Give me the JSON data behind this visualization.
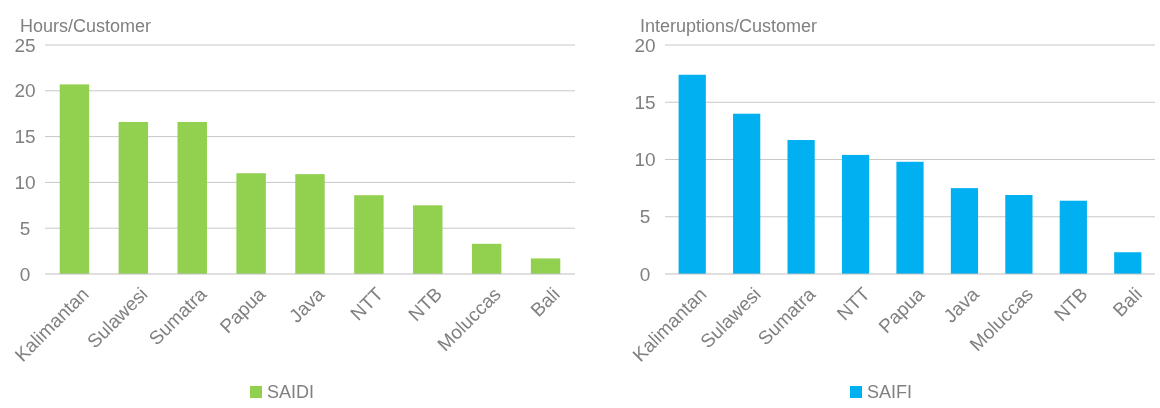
{
  "chart_data": [
    {
      "type": "bar",
      "ylabel": "Hours/Customer",
      "categories": [
        "Kalimantan",
        "Sulawesi",
        "Sumatra",
        "Papua",
        "Java",
        "NTT",
        "NTB",
        "Moluccas",
        "Bali"
      ],
      "series": [
        {
          "name": "SAIDI",
          "color": "#92d050",
          "values": [
            20.7,
            16.6,
            16.6,
            11.0,
            10.9,
            8.6,
            7.5,
            3.3,
            1.7
          ]
        }
      ],
      "ylim": [
        0,
        25
      ],
      "yticks": [
        0,
        5,
        10,
        15,
        20,
        25
      ],
      "grid": "y",
      "legend": "bottom"
    },
    {
      "type": "bar",
      "ylabel": "Interuptions/Customer",
      "categories": [
        "Kalimantan",
        "Sulawesi",
        "Sumatra",
        "NTT",
        "Papua",
        "Java",
        "Moluccas",
        "NTB",
        "Bali"
      ],
      "series": [
        {
          "name": "SAIFI",
          "color": "#00b0f0",
          "values": [
            17.4,
            14.0,
            11.7,
            10.4,
            9.8,
            7.5,
            6.9,
            6.4,
            1.9
          ]
        }
      ],
      "ylim": [
        0,
        20
      ],
      "yticks": [
        0,
        5,
        10,
        15,
        20
      ],
      "grid": "y",
      "legend": "bottom"
    }
  ]
}
